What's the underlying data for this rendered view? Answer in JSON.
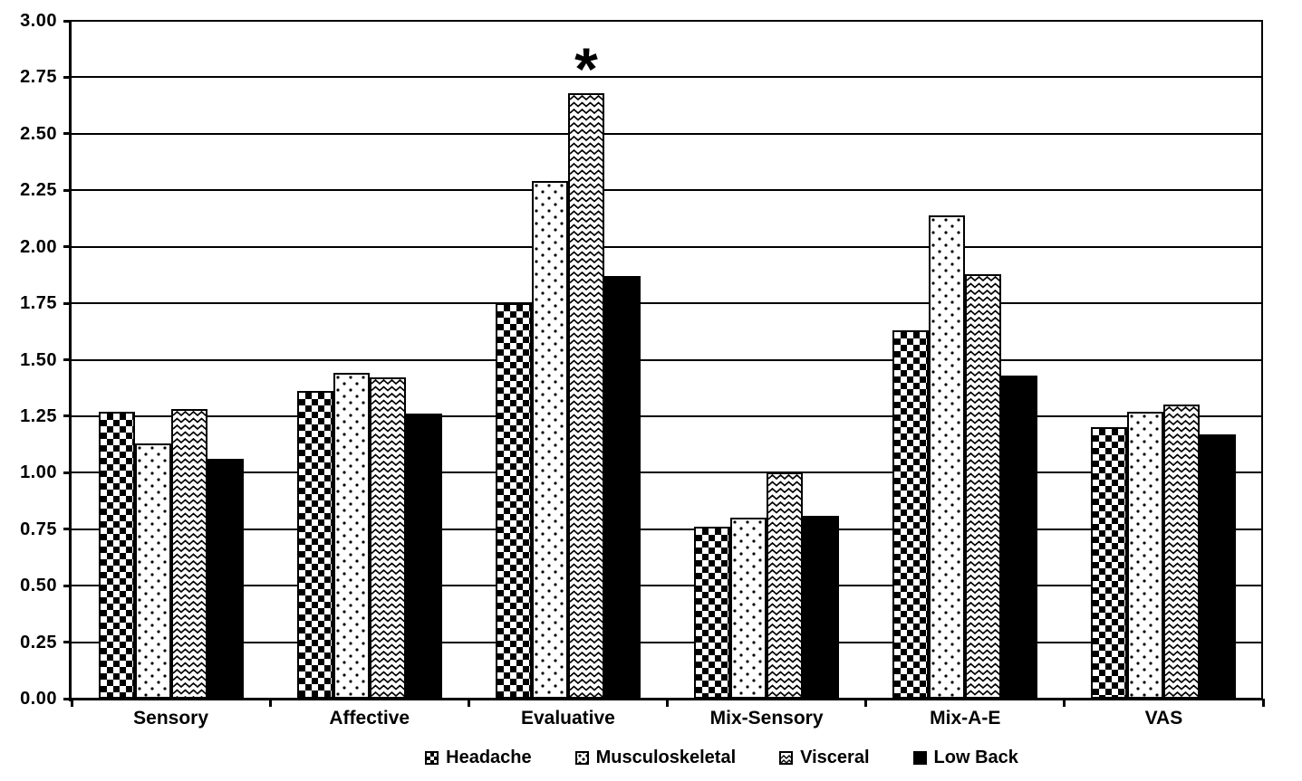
{
  "chart_data": {
    "type": "bar",
    "title": "",
    "xlabel": "",
    "ylabel": "",
    "categories": [
      "Sensory",
      "Affective",
      "Evaluative",
      "Mix-Sensory",
      "Mix-A-E",
      "VAS"
    ],
    "series": [
      {
        "name": "Headache",
        "pattern": "checker",
        "values": [
          1.27,
          1.36,
          1.75,
          0.76,
          1.63,
          1.2
        ]
      },
      {
        "name": "Musculoskeletal",
        "pattern": "dots",
        "values": [
          1.13,
          1.44,
          2.29,
          0.8,
          2.14,
          1.27
        ]
      },
      {
        "name": "Visceral",
        "pattern": "zigzag",
        "values": [
          1.28,
          1.42,
          2.68,
          1.0,
          1.88,
          1.3
        ]
      },
      {
        "name": "Low Back",
        "pattern": "solid",
        "values": [
          1.06,
          1.26,
          1.87,
          0.81,
          1.43,
          1.17
        ]
      }
    ],
    "ylim": [
      0.0,
      3.0
    ],
    "ytick_step": 0.25,
    "ytick_labels": [
      "0.00",
      "0.25",
      "0.50",
      "0.75",
      "1.00",
      "1.25",
      "1.50",
      "1.75",
      "2.00",
      "2.25",
      "2.50",
      "2.75",
      "3.00"
    ],
    "grid": "horizontal",
    "legend_position": "bottom",
    "annotation": {
      "symbol": "*",
      "target_category": "Evaluative",
      "target_series": "Visceral"
    }
  },
  "colors": {
    "foreground": "#000000",
    "background": "#ffffff"
  }
}
